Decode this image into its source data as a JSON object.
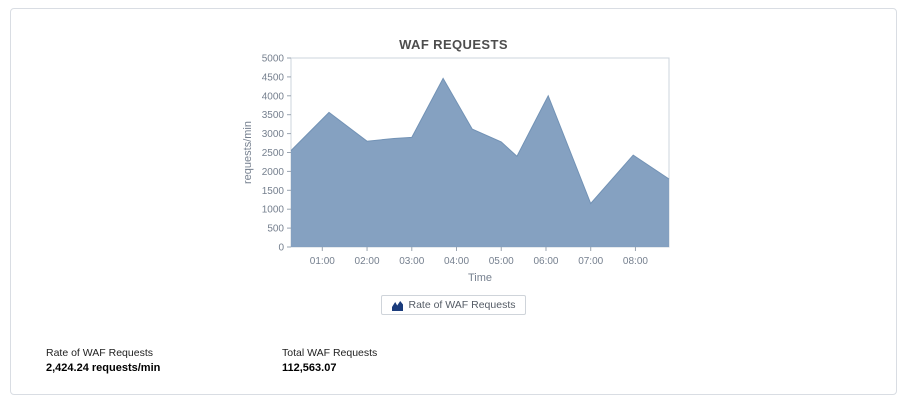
{
  "chart_data": {
    "type": "area",
    "title": "WAF REQUESTS",
    "xlabel": "Time",
    "ylabel": "requests/min",
    "ylim": [
      0,
      5000
    ],
    "ytick_step": 500,
    "xlim": [
      0.3,
      8.75
    ],
    "x_tick_hours": [
      1,
      2,
      3,
      4,
      5,
      6,
      7,
      8
    ],
    "x_ticks": [
      "01:00",
      "02:00",
      "03:00",
      "04:00",
      "05:00",
      "06:00",
      "07:00",
      "08:00"
    ],
    "grid": false,
    "legend_position": "bottom",
    "series": [
      {
        "name": "Rate of WAF Requests",
        "color": "#7e9cbe",
        "line_color": "#7292b5",
        "x": [
          0.3,
          1.15,
          2.0,
          2.6,
          3.0,
          3.7,
          4.35,
          5.0,
          5.35,
          6.05,
          7.0,
          7.95,
          8.75
        ],
        "y": [
          2550,
          3560,
          2800,
          2870,
          2900,
          4460,
          3120,
          2780,
          2400,
          4000,
          1150,
          2430,
          1800
        ]
      }
    ]
  },
  "legend": {
    "icon_color": "#1b3c7c"
  },
  "stats": [
    {
      "label": "Rate of WAF Requests",
      "value": "2,424.24 requests/min"
    },
    {
      "label": "Total WAF Requests",
      "value": "112,563.07"
    }
  ]
}
